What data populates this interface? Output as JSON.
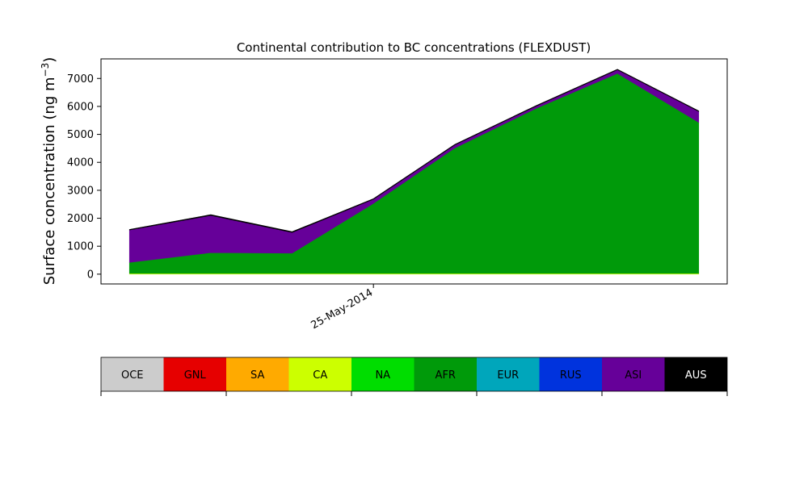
{
  "chart_data": {
    "type": "area",
    "title": "Continental contribution to BC concentrations (FLEXDUST)",
    "ylabel": "Surface concentration (ng m",
    "ylabel_sup": "−3",
    "ylabel_close": ")",
    "xlabel": "",
    "x": [
      0,
      1,
      2,
      3,
      4,
      5,
      6,
      7
    ],
    "xlim": [
      -0.35,
      7.35
    ],
    "ylim": [
      -350,
      7700
    ],
    "yticks": [
      0,
      1000,
      2000,
      3000,
      4000,
      5000,
      6000,
      7000
    ],
    "xticks": [
      {
        "x": 3,
        "label": "25-May-2014"
      }
    ],
    "grid": false,
    "series": [
      {
        "name": "OCE",
        "color": "#cccccc",
        "values": [
          0,
          0,
          0,
          0,
          0,
          0,
          0,
          0
        ]
      },
      {
        "name": "GNL",
        "color": "#e60000",
        "values": [
          0,
          0,
          0,
          0,
          0,
          0,
          0,
          0
        ]
      },
      {
        "name": "SA",
        "color": "#ffaa00",
        "values": [
          0,
          0,
          0,
          0,
          0,
          0,
          0,
          0
        ]
      },
      {
        "name": "CA",
        "color": "#ccff00",
        "values": [
          25,
          25,
          25,
          25,
          25,
          25,
          25,
          25
        ]
      },
      {
        "name": "NA",
        "color": "#00dd00",
        "values": [
          0,
          0,
          0,
          0,
          0,
          0,
          0,
          0
        ]
      },
      {
        "name": "AFR",
        "color": "#009a0a",
        "values": [
          395,
          745,
          725,
          2505,
          4485,
          5905,
          7155,
          5405
        ]
      },
      {
        "name": "EUR",
        "color": "#00a6bb",
        "values": [
          0,
          0,
          0,
          0,
          0,
          0,
          0,
          0
        ]
      },
      {
        "name": "RUS",
        "color": "#0033dd",
        "values": [
          0,
          0,
          0,
          0,
          0,
          0,
          0,
          0
        ]
      },
      {
        "name": "ASI",
        "color": "#660099",
        "values": [
          1160,
          1330,
          740,
          150,
          110,
          80,
          130,
          390
        ]
      },
      {
        "name": "AUS",
        "color": "#000000",
        "values": [
          20,
          30,
          30,
          20,
          20,
          20,
          20,
          20
        ]
      }
    ]
  }
}
